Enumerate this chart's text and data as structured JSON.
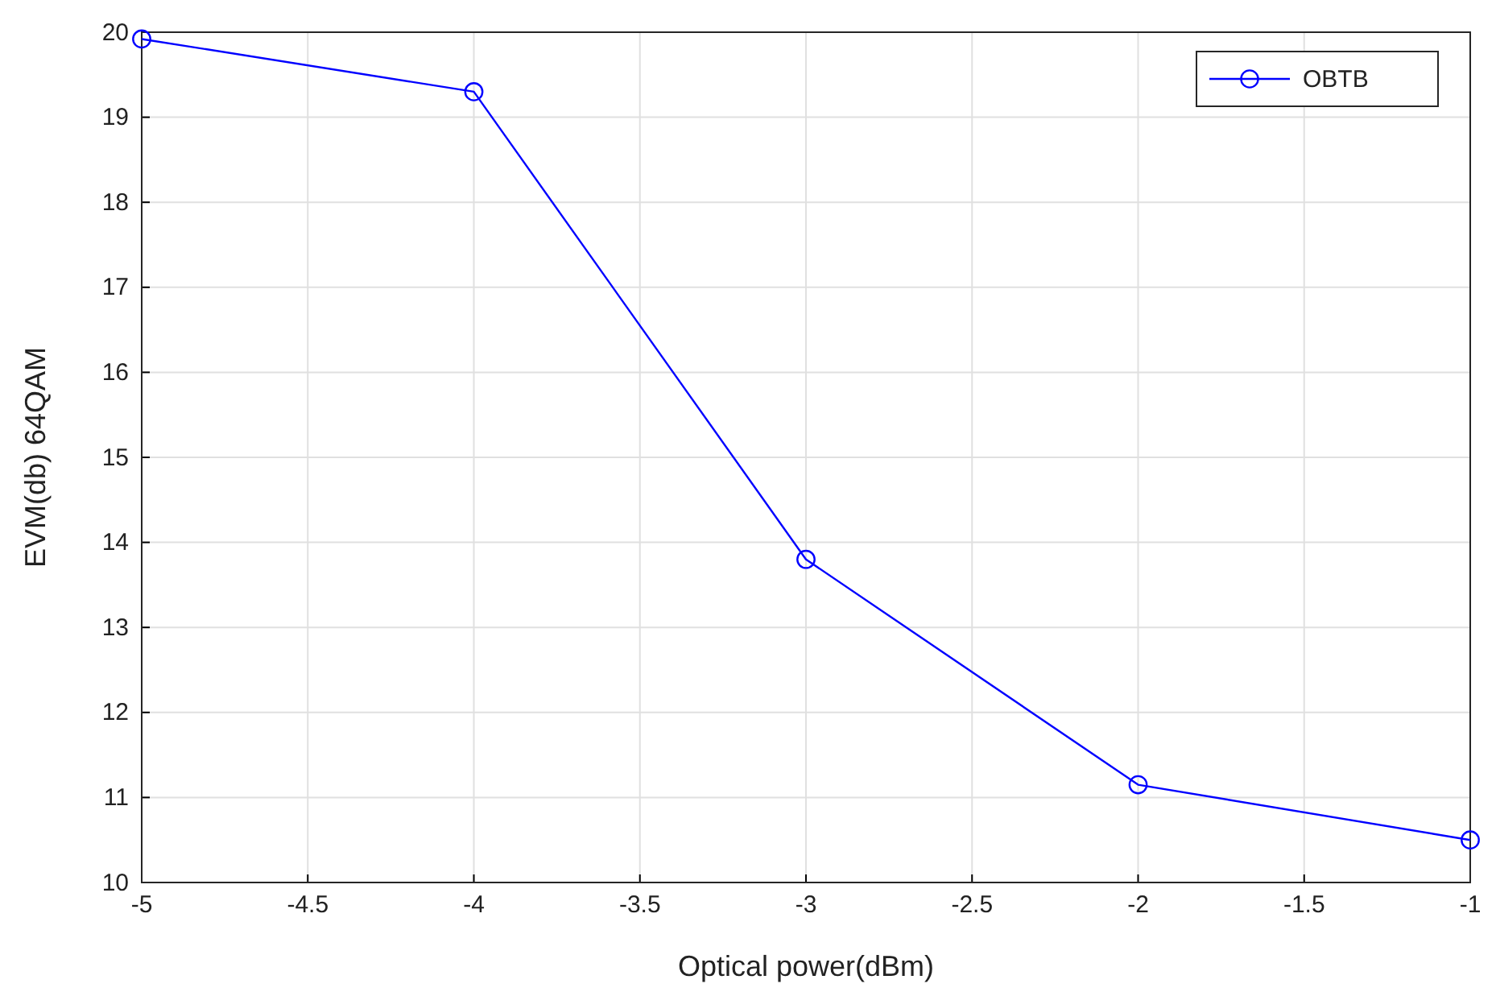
{
  "chart_data": {
    "type": "line",
    "xlabel": "Optical power(dBm)",
    "ylabel": "EVM(db) 64QAM",
    "x": [
      -5,
      -4,
      -3,
      -2,
      -1
    ],
    "series": [
      {
        "name": "OBTB",
        "color": "#0000ff",
        "values": [
          19.92,
          19.3,
          13.8,
          11.15,
          10.5
        ]
      }
    ],
    "xlim": [
      -5,
      -1
    ],
    "xticks": [
      -5,
      -4.5,
      -4,
      -3.5,
      -3,
      -2.5,
      -2,
      -1.5,
      -1
    ],
    "ylim": [
      10,
      20
    ],
    "yticks": [
      10,
      11,
      12,
      13,
      14,
      15,
      16,
      17,
      18,
      19,
      20
    ],
    "grid": true,
    "legend": "top right",
    "marker": "circle",
    "line_style": "solid"
  }
}
